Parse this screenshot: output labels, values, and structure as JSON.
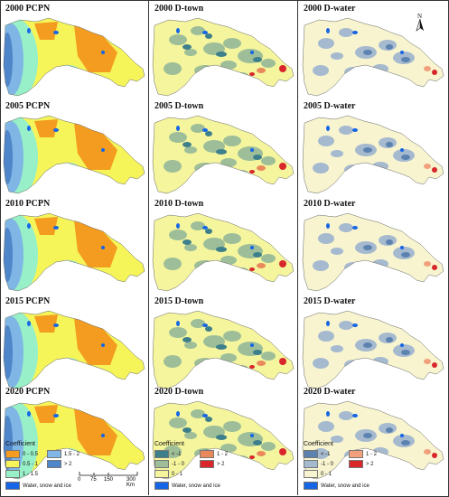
{
  "columns": [
    {
      "id": "pcpn",
      "panels": [
        "2000 PCPN",
        "2005 PCPN",
        "2010 PCPN",
        "2015 PCPN",
        "2020 PCPN"
      ],
      "legend": {
        "title": "Coefficient",
        "items": [
          {
            "label": "0 - 0.5",
            "color": "#F39C1F"
          },
          {
            "label": "1.5 - 2",
            "color": "#7FB6E5"
          },
          {
            "label": "0.5 - 1",
            "color": "#F5F55A"
          },
          {
            "label": "> 2",
            "color": "#4F86C9"
          },
          {
            "label": "1 - 1.5",
            "color": "#97F0C7"
          }
        ],
        "water_label": "Water, snow and ice",
        "water_color": "#1565E5"
      },
      "scale": {
        "ticks": [
          "0",
          "75",
          "150",
          "300 Km"
        ]
      }
    },
    {
      "id": "dtown",
      "panels": [
        "2000 D-town",
        "2005 D-town",
        "2010 D-town",
        "2015 D-town",
        "2020 D-town"
      ],
      "legend": {
        "title": "Coefficient",
        "items": [
          {
            "label": "< -1",
            "color": "#3E7F8C"
          },
          {
            "label": "1 - 2",
            "color": "#E9895B"
          },
          {
            "label": "-1 - 0",
            "color": "#9DBE98"
          },
          {
            "label": "> 2",
            "color": "#D9262B"
          },
          {
            "label": "0 - 1",
            "color": "#F5F59E"
          }
        ],
        "water_label": "Water, snow and ice",
        "water_color": "#1565E5"
      }
    },
    {
      "id": "dwater",
      "panels": [
        "2000 D-water",
        "2005 D-water",
        "2010 D-water",
        "2015 D-water",
        "2020 D-water"
      ],
      "legend": {
        "title": "Coefficient",
        "items": [
          {
            "label": "< -1",
            "color": "#5C82B0"
          },
          {
            "label": "1 - 2",
            "color": "#F2A07C"
          },
          {
            "label": "-1 - 0",
            "color": "#A5B9CF"
          },
          {
            "label": "> 2",
            "color": "#D9262B"
          },
          {
            "label": "0 - 1",
            "color": "#F7F4CF"
          }
        ],
        "water_label": "Water, snow and ice",
        "water_color": "#1565E5"
      }
    }
  ],
  "north_label": "N"
}
